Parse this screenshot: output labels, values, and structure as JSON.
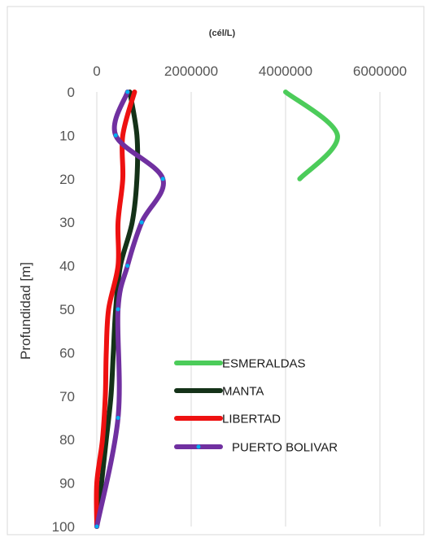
{
  "chart_data": {
    "type": "line",
    "title": "(cél/L)",
    "xlabel": "",
    "ylabel": "Profundidad [m]",
    "x_axis_position": "top",
    "y_axis_inverted": true,
    "xlim": [
      0,
      6000000
    ],
    "ylim": [
      0,
      100
    ],
    "x_ticks": [
      "0",
      "2000000",
      "4000000",
      "6000000"
    ],
    "y_ticks": [
      "0",
      "10",
      "20",
      "30",
      "40",
      "50",
      "60",
      "70",
      "80",
      "90",
      "100"
    ],
    "grid": "vertical",
    "legend_position": "bottom-right",
    "series": [
      {
        "name": "ESMERALDAS",
        "color": "#4ccc5a",
        "markers": false,
        "points": [
          [
            4000000,
            0
          ],
          [
            5100000,
            10
          ],
          [
            4300000,
            20
          ]
        ]
      },
      {
        "name": "MANTA",
        "color": "#143218",
        "markers": false,
        "points": [
          [
            700000,
            0
          ],
          [
            850000,
            10
          ],
          [
            850000,
            20
          ],
          [
            750000,
            30
          ],
          [
            500000,
            40
          ],
          [
            400000,
            50
          ],
          [
            350000,
            60
          ],
          [
            300000,
            70
          ],
          [
            200000,
            80
          ],
          [
            100000,
            90
          ],
          [
            0,
            100
          ]
        ]
      },
      {
        "name": "LIBERTAD",
        "color": "#ee1111",
        "markers": false,
        "points": [
          [
            800000,
            0
          ],
          [
            550000,
            10
          ],
          [
            550000,
            20
          ],
          [
            450000,
            30
          ],
          [
            450000,
            40
          ],
          [
            250000,
            50
          ],
          [
            200000,
            60
          ],
          [
            180000,
            70
          ],
          [
            120000,
            80
          ],
          [
            0,
            90
          ],
          [
            0,
            100
          ]
        ]
      },
      {
        "name": "PUERTO BOLIVAR",
        "color": "#7030a0",
        "markers": true,
        "marker_color": "#00b0f0",
        "points": [
          [
            650000,
            0
          ],
          [
            400000,
            10
          ],
          [
            1400000,
            20
          ],
          [
            950000,
            30
          ],
          [
            650000,
            40
          ],
          [
            450000,
            50
          ],
          [
            450000,
            75
          ],
          [
            0,
            100
          ]
        ]
      }
    ]
  }
}
